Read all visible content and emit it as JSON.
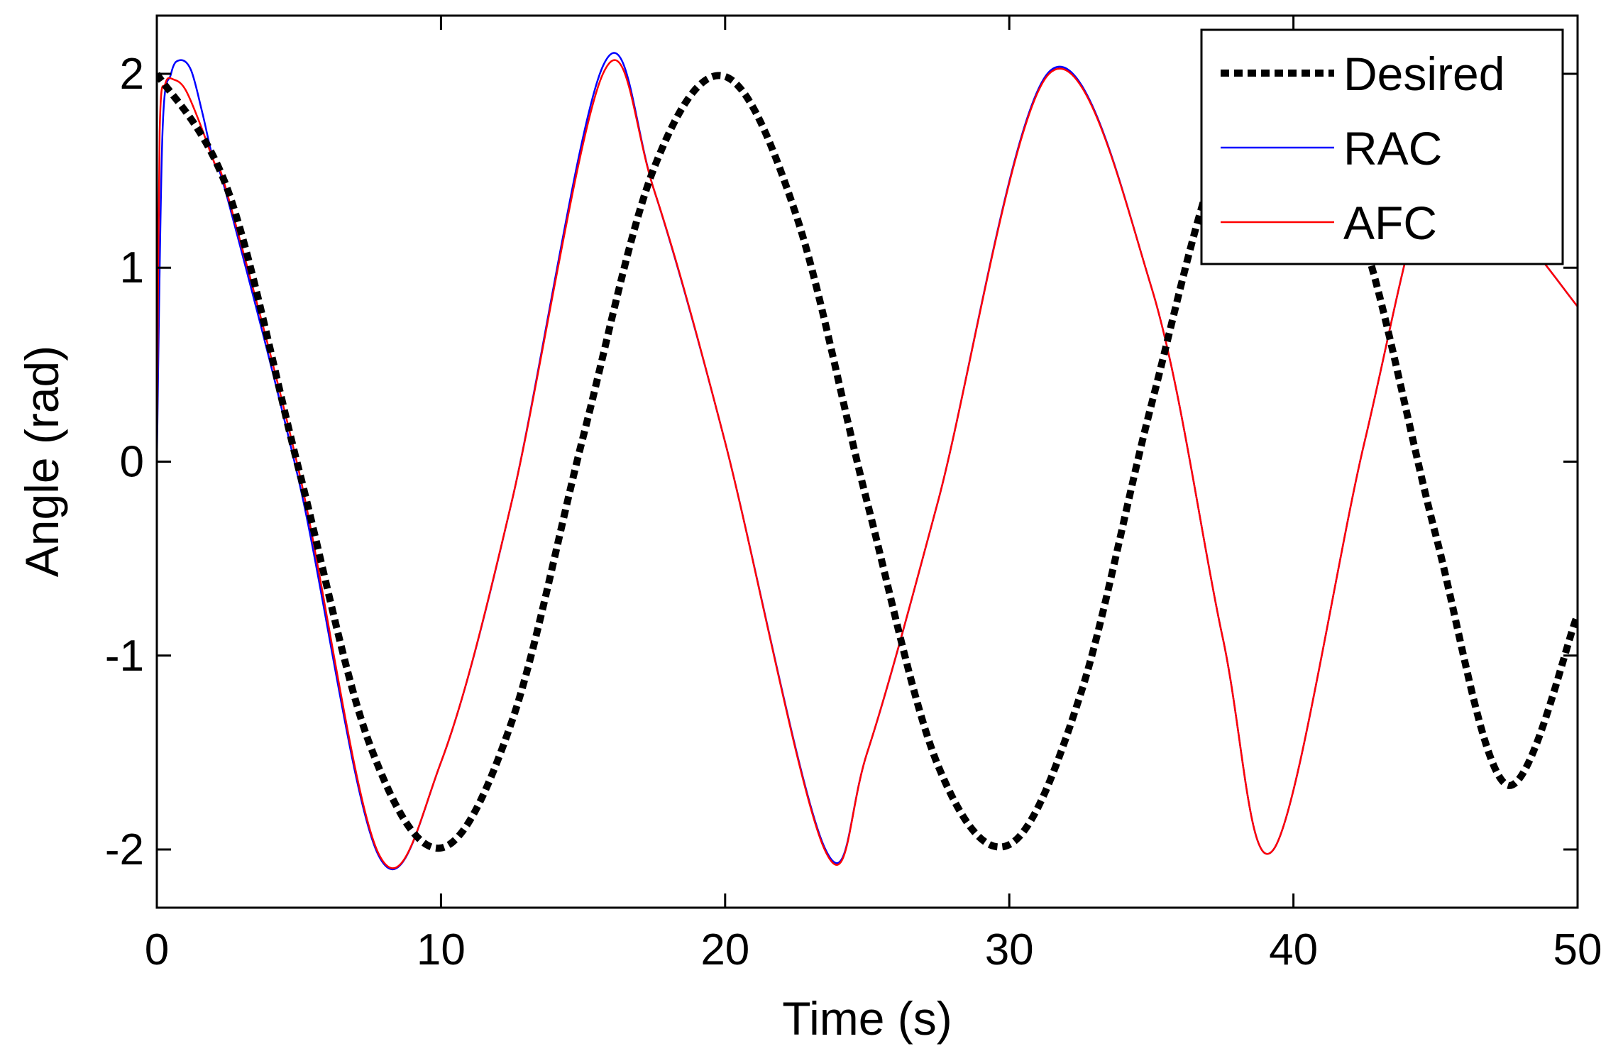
{
  "chart_data": {
    "type": "line",
    "title": "",
    "xlabel": "Time (s)",
    "ylabel": "Angle (rad)",
    "xlim": [
      0,
      50
    ],
    "ylim": [
      -2.3,
      2.3
    ],
    "xticks": [
      0,
      10,
      20,
      30,
      40,
      50
    ],
    "xtick_labels": [
      "0",
      "10",
      "20",
      "30",
      "40",
      "50"
    ],
    "yticks": [
      -2,
      -1,
      0,
      1,
      2
    ],
    "ytick_labels": [
      "-2",
      "-1",
      "0",
      "1",
      "2"
    ],
    "grid": false,
    "legend_position": "top-right",
    "series": [
      {
        "name": "Desired",
        "color": "#000000",
        "style": "dotted",
        "x": [
          0,
          2.5,
          5,
          7.5,
          10,
          12.5,
          15,
          17.5,
          20,
          22.5,
          25,
          27.5,
          30,
          32.5,
          35,
          37.5,
          40,
          42.5,
          45,
          47.5,
          50
        ],
        "y": [
          2.0,
          1.399,
          -0.042,
          -1.461,
          -1.992,
          -1.337,
          0.126,
          1.515,
          1.986,
          1.271,
          -0.21,
          -1.57,
          -1.975,
          -1.203,
          0.293,
          1.62,
          1.958,
          1.132,
          -0.374,
          -1.666,
          -0.79
        ]
      },
      {
        "name": "RAC",
        "color": "#0000ff",
        "style": "solid",
        "x": [
          0,
          0.2,
          0.5,
          0.8,
          1.2,
          1.6,
          2.0,
          2.5,
          5,
          7.8,
          10,
          12.5,
          15.7,
          17.5,
          20,
          23.5,
          25,
          27.5,
          31.4,
          35,
          37.5,
          39.3,
          42.5,
          45,
          47.5,
          50
        ],
        "y": [
          0.0,
          1.7,
          2.0,
          2.07,
          2.02,
          1.8,
          1.55,
          1.35,
          -0.1,
          -2.03,
          -1.55,
          -0.2,
          2.04,
          1.4,
          0.1,
          -1.99,
          -1.5,
          -0.2,
          2.01,
          0.9,
          -0.9,
          -2.0,
          0.1,
          1.5,
          1.25,
          0.8
        ]
      },
      {
        "name": "AFC",
        "color": "#ff0000",
        "style": "solid",
        "x": [
          0,
          0.1,
          0.3,
          0.6,
          1.0,
          1.5,
          2.0,
          2.5,
          5,
          7.8,
          10,
          12.5,
          15.7,
          17.5,
          20,
          23.5,
          25,
          27.5,
          31.4,
          35,
          37.5,
          39.3,
          42.5,
          45,
          47.5,
          50
        ],
        "y": [
          0.0,
          1.7,
          1.95,
          1.97,
          1.92,
          1.75,
          1.55,
          1.37,
          -0.05,
          -2.02,
          -1.55,
          -0.2,
          2.0,
          1.4,
          0.1,
          -2.0,
          -1.5,
          -0.2,
          2.0,
          0.9,
          -0.9,
          -2.0,
          0.1,
          1.5,
          1.25,
          0.8
        ]
      }
    ]
  }
}
